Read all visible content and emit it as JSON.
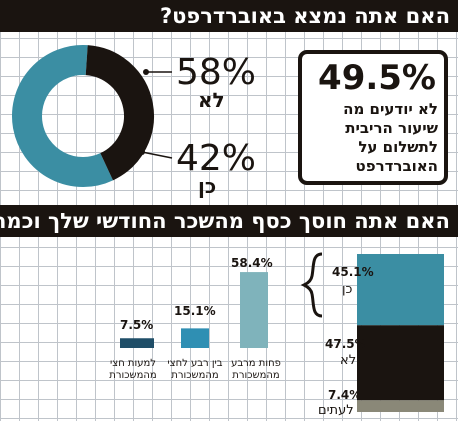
{
  "chart_data": [
    {
      "type": "pie",
      "title": "האם אתה נמצא באוברדרפט?",
      "categories": [
        "לא",
        "כן"
      ],
      "values": [
        58,
        42
      ],
      "value_labels": [
        "58%",
        "42%"
      ],
      "colors": [
        "#3b8ea3",
        "#1a1410"
      ],
      "callout": {
        "value": "49.5%",
        "text": "לא יודעים מה שיעור הריבית לתשלום על האוברדרפט"
      }
    },
    {
      "type": "bar",
      "title": "האם אתה חוסך כסף מהשכר החודשי שלך וכמה?",
      "categories": [
        "למעות חצי מהמשכורת",
        "בין רבע לחצי מהמשכורת",
        "פחות מרבע מהמשכורת"
      ],
      "values": [
        7.5,
        15.1,
        58.4
      ],
      "value_labels": [
        "7.5%",
        "15.1%",
        "58.4%"
      ],
      "colors": [
        "#1f4e68",
        "#2f8fb3",
        "#7fb3bb"
      ],
      "ylim": [
        0,
        60
      ]
    },
    {
      "type": "bar",
      "stacked": true,
      "categories": [
        "כן",
        "לא",
        "לעתים"
      ],
      "values": [
        45.1,
        47.5,
        7.4
      ],
      "value_labels": [
        "45.1%",
        "47.5%",
        "7.4%"
      ],
      "colors": [
        "#3b8ea3",
        "#1a1410",
        "#8a8878"
      ]
    }
  ]
}
